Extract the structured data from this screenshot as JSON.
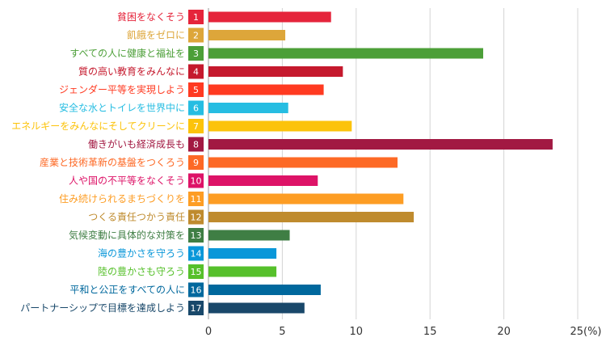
{
  "chart_data": {
    "type": "bar",
    "orientation": "horizontal",
    "categories": [
      "貧困をなくそう",
      "飢餓をゼロに",
      "すべての人に健康と福祉を",
      "質の高い教育をみんなに",
      "ジェンダー平等を実現しよう",
      "安全な水とトイレを世界中に",
      "エネルギーをみんなにそしてクリーンに",
      "働きがいも経済成長も",
      "産業と技術革新の基盤をつくろう",
      "人や国の不平等をなくそう",
      "住み続けられるまちづくりを",
      "つくる責任つかう責任",
      "気候変動に具体的な対策を",
      "海の豊かさを守ろう",
      "陸の豊かさも守ろう",
      "平和と公正をすべての人に",
      "パートナーシップで目標を達成しよう"
    ],
    "numbers": [
      "1",
      "2",
      "3",
      "4",
      "5",
      "6",
      "7",
      "8",
      "9",
      "10",
      "11",
      "12",
      "13",
      "14",
      "15",
      "16",
      "17"
    ],
    "values": [
      8.3,
      5.2,
      18.6,
      9.1,
      7.8,
      5.4,
      9.7,
      23.3,
      12.8,
      7.4,
      13.2,
      13.9,
      5.5,
      4.6,
      4.6,
      7.6,
      6.5
    ],
    "colors": [
      "#E5243B",
      "#DDA63A",
      "#4C9F38",
      "#C5192D",
      "#FF3A21",
      "#26BDE2",
      "#FCC30B",
      "#A21942",
      "#FD6925",
      "#DD1367",
      "#FD9D24",
      "#BF8B2E",
      "#3F7E44",
      "#0A97D9",
      "#56C02B",
      "#00689D",
      "#19486A"
    ],
    "xticks": [
      "0",
      "5",
      "10",
      "15",
      "20",
      "25(%)"
    ],
    "xlim": [
      0,
      25
    ],
    "grid": "vertical"
  }
}
